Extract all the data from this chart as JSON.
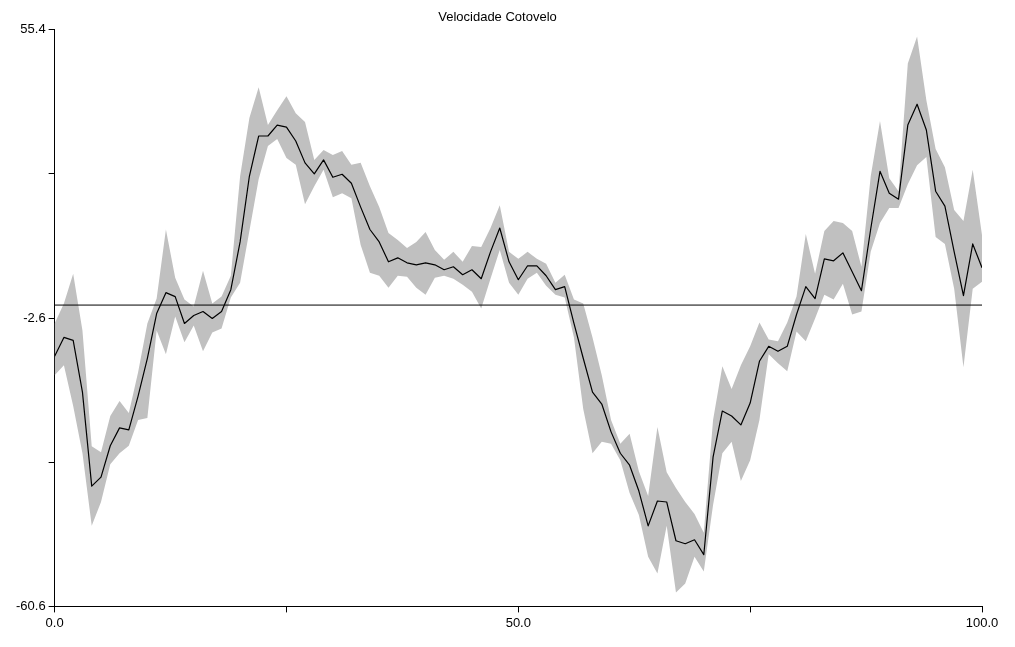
{
  "chart_data": {
    "type": "line",
    "title": "Velocidade Cotovelo",
    "x": [
      0,
      1,
      2,
      3,
      4,
      5,
      6,
      7,
      8,
      9,
      10,
      11,
      12,
      13,
      14,
      15,
      16,
      17,
      18,
      19,
      20,
      21,
      22,
      23,
      24,
      25,
      26,
      27,
      28,
      29,
      30,
      31,
      32,
      33,
      34,
      35,
      36,
      37,
      38,
      39,
      40,
      41,
      42,
      43,
      44,
      45,
      46,
      47,
      48,
      49,
      50,
      51,
      52,
      53,
      54,
      55,
      56,
      57,
      58,
      59,
      60,
      61,
      62,
      63,
      64,
      65,
      66,
      67,
      68,
      69,
      70,
      71,
      72,
      73,
      74,
      75,
      76,
      77,
      78,
      79,
      80,
      81,
      82,
      83,
      84,
      85,
      86,
      87,
      88,
      89,
      90,
      91,
      92,
      93,
      94,
      95,
      96,
      97,
      98,
      99,
      100
    ],
    "series": [
      {
        "color": "#000000",
        "values": [
          -10.3,
          -6.5,
          -7.1,
          -17.5,
          -36.4,
          -34.6,
          -28.3,
          -24.7,
          -25.1,
          -18.3,
          -10.7,
          -1.7,
          2.5,
          1.7,
          -3.7,
          -2.1,
          -1.3,
          -2.7,
          -1.3,
          3.1,
          12.7,
          25.9,
          34.0,
          34.0,
          36.2,
          35.8,
          33.0,
          28.6,
          26.4,
          29.2,
          25.7,
          26.3,
          24.5,
          19.7,
          15.2,
          12.7,
          8.7,
          9.5,
          8.5,
          8.1,
          8.5,
          8.1,
          7.1,
          7.7,
          6.1,
          7.1,
          5.3,
          10.7,
          15.5,
          8.7,
          5.1,
          7.9,
          7.9,
          5.9,
          3.1,
          3.7,
          -3.7,
          -10.7,
          -17.5,
          -19.9,
          -25.5,
          -29.8,
          -32.2,
          -37.4,
          -44.4,
          -39.4,
          -39.6,
          -47.4,
          -48.0,
          -47.2,
          -50.2,
          -30.6,
          -21.3,
          -22.3,
          -24.1,
          -19.7,
          -11.3,
          -8.3,
          -9.3,
          -8.3,
          -1.9,
          3.7,
          1.3,
          9.3,
          8.9,
          10.5,
          6.7,
          2.9,
          15.3,
          26.9,
          22.5,
          21.3,
          36.2,
          40.4,
          35.2,
          22.9,
          19.9,
          10.7,
          1.9,
          12.3,
          7.5
        ],
        "upper": [
          -3.7,
          0.3,
          6.3,
          -5.1,
          -28.4,
          -29.6,
          -22.3,
          -19.3,
          -21.7,
          -13.5,
          -3.7,
          1.3,
          15.2,
          5.5,
          1.1,
          -0.3,
          6.9,
          0.3,
          1.7,
          5.9,
          25.9,
          37.6,
          43.8,
          36.2,
          39.2,
          42.0,
          38.6,
          36.8,
          29.2,
          31.2,
          30.2,
          31.0,
          28.2,
          28.6,
          23.9,
          19.7,
          14.5,
          13.1,
          11.5,
          12.7,
          14.7,
          11.1,
          9.1,
          10.7,
          8.7,
          11.9,
          11.7,
          15.5,
          20.1,
          10.7,
          9.3,
          10.7,
          9.3,
          8.3,
          4.5,
          6.1,
          1.1,
          0.3,
          -6.5,
          -14.1,
          -23.1,
          -27.9,
          -25.9,
          -33.4,
          -38.4,
          -24.5,
          -33.6,
          -36.8,
          -39.6,
          -42.0,
          -45.8,
          -23.1,
          -12.3,
          -16.9,
          -12.1,
          -8.3,
          -3.5,
          -6.9,
          -7.3,
          -3.5,
          1.7,
          14.3,
          6.3,
          14.9,
          16.9,
          16.5,
          14.9,
          7.7,
          25.9,
          37.0,
          25.5,
          22.9,
          48.6,
          54.0,
          41.2,
          31.4,
          27.7,
          19.1,
          16.9,
          27.2,
          14.1
        ],
        "lower": [
          -14.1,
          -12.1,
          -20.3,
          -29.8,
          -44.4,
          -39.6,
          -32.0,
          -29.8,
          -28.3,
          -23.1,
          -22.7,
          -5.1,
          -9.9,
          -2.3,
          -7.5,
          -4.1,
          -9.3,
          -5.5,
          -4.7,
          1.5,
          4.5,
          14.9,
          25.3,
          32.0,
          33.4,
          29.6,
          28.2,
          20.3,
          23.9,
          27.2,
          21.7,
          22.5,
          21.5,
          12.1,
          6.5,
          5.9,
          3.5,
          5.9,
          5.7,
          3.5,
          2.1,
          5.5,
          5.9,
          5.3,
          4.1,
          2.7,
          -0.7,
          5.3,
          11.1,
          4.5,
          2.1,
          5.3,
          6.5,
          3.9,
          2.1,
          1.5,
          -6.5,
          -20.9,
          -29.8,
          -27.5,
          -27.9,
          -31.2,
          -37.8,
          -42.2,
          -50.6,
          -54.0,
          -44.4,
          -57.8,
          -56.0,
          -50.6,
          -53.6,
          -40.2,
          -29.8,
          -27.5,
          -35.4,
          -31.2,
          -23.1,
          -9.9,
          -11.7,
          -13.3,
          -5.3,
          -7.3,
          -2.7,
          2.1,
          1.1,
          4.3,
          -1.9,
          -1.3,
          10.7,
          16.5,
          19.5,
          19.5,
          24.3,
          28.1,
          29.8,
          13.7,
          12.3,
          3.3,
          -12.5,
          3.3,
          4.7
        ]
      }
    ],
    "xlim": [
      0,
      100
    ],
    "xticks": [
      {
        "value": 0,
        "label": "0.0"
      },
      {
        "value": 25,
        "label": null
      },
      {
        "value": 50,
        "label": "50.0"
      },
      {
        "value": 75,
        "label": null
      },
      {
        "value": 100,
        "label": "100.0"
      }
    ],
    "ylim": [
      -60.6,
      55.4
    ],
    "yticks": [
      -60.6,
      {
        "value": -31.6,
        "label": null
      },
      -2.6,
      {
        "value": 26.4,
        "label": null
      },
      55.4
    ],
    "ref_lines": [
      {
        "axis": "y",
        "value": 0,
        "color": "#000000"
      }
    ],
    "grid": false,
    "legend": false,
    "marker": "none",
    "line_style": "solid"
  }
}
